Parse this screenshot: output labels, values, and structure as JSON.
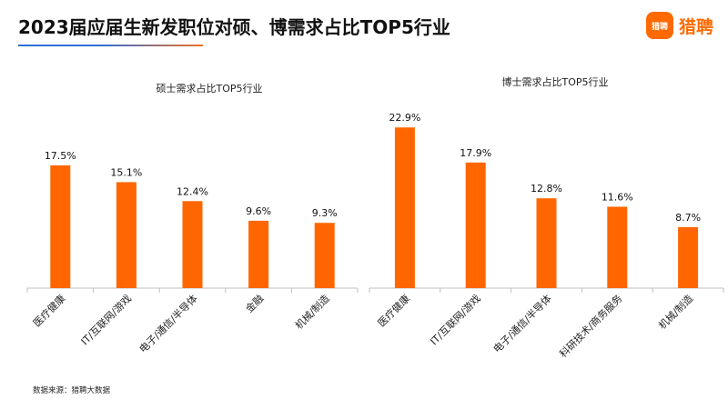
{
  "header": {
    "title": "2023届应届生新发职位对硕、博需求占比TOP5行业",
    "logo_badge": "猎聘",
    "logo_text": "猎聘"
  },
  "colors": {
    "bar": "#ff6600",
    "accent_blue": "#2f6fd6",
    "axis": "#bfbfbf"
  },
  "chart_data": [
    {
      "type": "bar",
      "title": "硕士需求占比TOP5行业",
      "categories": [
        "医疗健康",
        "IT/互联网/游戏",
        "电子/通信/半导体",
        "金融",
        "机械/制造"
      ],
      "values": [
        17.5,
        15.1,
        12.4,
        9.6,
        9.3
      ],
      "labels": [
        "17.5%",
        "15.1%",
        "12.4%",
        "9.6%",
        "9.3%"
      ],
      "unit": "%",
      "ylim": [
        0,
        24
      ],
      "grid": false
    },
    {
      "type": "bar",
      "title": "博士需求占比TOP5行业",
      "categories": [
        "医疗健康",
        "IT/互联网/游戏",
        "电子/通信/半导体",
        "科研技术/商务服务",
        "机械/制造"
      ],
      "values": [
        22.9,
        17.9,
        12.8,
        11.6,
        8.7
      ],
      "labels": [
        "22.9%",
        "17.9%",
        "12.8%",
        "11.6%",
        "8.7%"
      ],
      "unit": "%",
      "ylim": [
        0,
        24
      ],
      "grid": false
    }
  ],
  "footer": {
    "source": "数据来源：猎聘大数据"
  }
}
